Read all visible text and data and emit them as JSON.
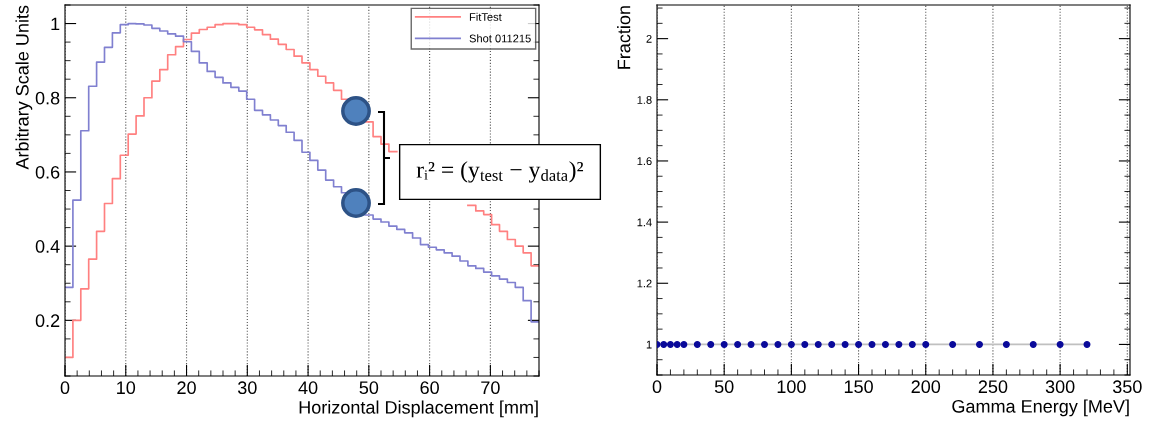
{
  "chart_data": [
    {
      "type": "step",
      "xlabel": "Horizontal Displacement [mm]",
      "ylabel": "Arbitrary Scale Units",
      "x": [
        0,
        1.3,
        2.6,
        3.9,
        5.2,
        6.5,
        7.8,
        9.1,
        10.4,
        11.7,
        13,
        14.3,
        15.6,
        16.9,
        18.2,
        19.5,
        20.8,
        22.1,
        23.4,
        24.7,
        26,
        27.3,
        28.6,
        29.9,
        31.2,
        32.5,
        33.8,
        35.1,
        36.4,
        37.7,
        39,
        40.3,
        41.6,
        42.9,
        44.2,
        45.5,
        46.8,
        48.1,
        49.4,
        50.7,
        52,
        53.3,
        54.6,
        55.9,
        57.2,
        58.5,
        59.8,
        61.1,
        62.4,
        63.7,
        65,
        66.3,
        67.6,
        68.9,
        70.2,
        71.5,
        72.8,
        74.1,
        75.4,
        76.7,
        78
      ],
      "series": [
        {
          "name": "FitTest",
          "color": "#ff8080",
          "values": [
            0.1,
            0.2,
            0.285,
            0.365,
            0.44,
            0.515,
            0.582,
            0.645,
            0.702,
            0.751,
            0.8,
            0.845,
            0.876,
            0.916,
            0.938,
            0.957,
            0.974,
            0.984,
            0.99,
            0.997,
            1.0,
            1.0,
            0.997,
            0.99,
            0.983,
            0.97,
            0.958,
            0.944,
            0.93,
            0.912,
            0.894,
            0.876,
            0.858,
            0.84,
            0.82,
            0.796,
            null,
            null,
            0.735,
            0.695,
            0.675,
            0.655,
            null,
            null,
            null,
            null,
            null,
            null,
            null,
            null,
            null,
            0.51,
            0.495,
            0.485,
            0.458,
            0.44,
            0.418,
            0.4,
            0.382,
            0.347,
            0.347
          ]
        },
        {
          "name": "Shot 011215",
          "color": "#8080d0",
          "values": [
            0.289,
            0.524,
            0.711,
            0.831,
            0.896,
            0.936,
            0.975,
            0.997,
            1.0,
            0.999,
            0.996,
            0.987,
            0.98,
            0.972,
            0.966,
            0.951,
            0.925,
            0.894,
            0.871,
            0.855,
            0.84,
            0.828,
            0.818,
            0.796,
            0.766,
            0.754,
            0.74,
            0.725,
            0.707,
            0.685,
            0.653,
            0.631,
            0.605,
            0.578,
            0.56,
            0.544,
            null,
            null,
            0.484,
            0.473,
            0.465,
            0.454,
            0.445,
            0.436,
            0.422,
            0.404,
            0.397,
            0.39,
            0.382,
            0.373,
            0.36,
            0.347,
            0.34,
            0.33,
            0.32,
            0.311,
            0.302,
            0.289,
            0.253,
            0.196,
            0.196
          ]
        }
      ],
      "xlim": [
        0,
        78
      ],
      "xticks": [
        0,
        10,
        20,
        30,
        40,
        50,
        60,
        70
      ],
      "ylim": [
        0.05,
        1.05
      ],
      "yticks": [
        0.2,
        0.4,
        0.6,
        0.8,
        1
      ],
      "grid": "x",
      "legend": "top right",
      "annotations": [
        "rᵢ² = (y$_{test}$ − y$_{data}$)²"
      ]
    },
    {
      "type": "scatter",
      "xlabel": "Gamma Energy [MeV]",
      "ylabel": "Fraction",
      "x": [
        0,
        5,
        10,
        15,
        20,
        30,
        40,
        50,
        60,
        70,
        80,
        90,
        100,
        110,
        120,
        130,
        140,
        150,
        160,
        170,
        180,
        190,
        200,
        220,
        240,
        260,
        280,
        300,
        320
      ],
      "series": [
        {
          "type": "line",
          "color": "#c0c0c0",
          "marker": "none",
          "values": [
            1,
            1,
            1,
            1,
            1,
            1,
            1,
            1,
            1,
            1,
            1,
            1,
            1,
            1,
            1,
            1,
            1,
            1,
            1,
            1,
            1,
            1,
            1,
            1,
            1,
            1,
            1,
            1,
            1
          ]
        },
        {
          "type": "scatter",
          "color": "#0a0a9a",
          "marker": "circle",
          "values": [
            1,
            1,
            1,
            1,
            1,
            1,
            1,
            1,
            1,
            1,
            1,
            1,
            1,
            1,
            1,
            1,
            1,
            1,
            1,
            1,
            1,
            1,
            1,
            1,
            1,
            1,
            1,
            1,
            1
          ]
        }
      ],
      "xlim": [
        0,
        352
      ],
      "xticks": [
        0,
        50,
        100,
        150,
        200,
        250,
        300,
        350
      ],
      "ylim": [
        0.9,
        2.11
      ],
      "yticks": [
        1,
        1.2,
        1.4,
        1.6,
        1.8,
        2
      ],
      "grid": "x"
    }
  ]
}
